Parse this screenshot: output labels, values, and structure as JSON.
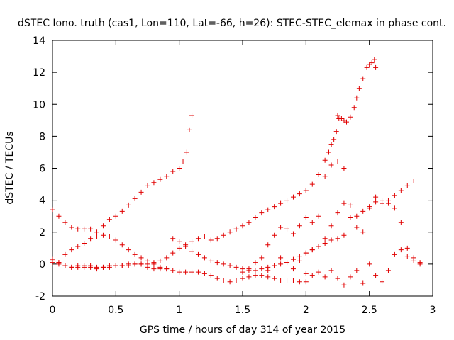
{
  "chart_data": {
    "type": "scatter",
    "title": "dSTEC Iono. truth (cas1, Lon=110, Lat=-66, h=26): STEC-STEC_elemax in phase cont.",
    "xlabel": "GPS time / hours of day 314 of year 2015",
    "ylabel": "dSTEC  / TECUs",
    "xlim": [
      0,
      3
    ],
    "ylim": [
      -2,
      14
    ],
    "xticks": [
      0,
      0.5,
      1,
      1.5,
      2,
      2.5,
      3
    ],
    "xtick_labels": [
      "0",
      "0.5",
      "1",
      "1.5",
      "2",
      "2.5",
      "3"
    ],
    "yticks": [
      -2,
      0,
      2,
      4,
      6,
      8,
      10,
      12,
      14
    ],
    "ytick_labels": [
      "-2",
      "0",
      "2",
      "4",
      "6",
      "8",
      "10",
      "12",
      "14"
    ],
    "grid": false,
    "legend": false,
    "marker": "+",
    "color": "#e00000",
    "series": [
      {
        "x": [
          0.0,
          0.05,
          0.1,
          0.15,
          0.2,
          0.25,
          0.3,
          0.35,
          0.4,
          0.45,
          0.5,
          0.55,
          0.6,
          0.65,
          0.7,
          0.75,
          0.8,
          0.85,
          0.9
        ],
        "y": [
          3.4,
          3.0,
          2.6,
          2.3,
          2.2,
          2.2,
          2.2,
          1.7,
          1.8,
          1.7,
          1.5,
          1.2,
          0.9,
          0.6,
          0.4,
          0.2,
          0.0,
          -0.2,
          -0.3
        ]
      },
      {
        "x": [
          0.0,
          0.05,
          0.1,
          0.15,
          0.2,
          0.25,
          0.3,
          0.35,
          0.4,
          0.45,
          0.5,
          0.55,
          0.6,
          0.65,
          0.7,
          0.75,
          0.8,
          0.85,
          0.9,
          0.95,
          1.0,
          1.03,
          1.06,
          1.08,
          1.1
        ],
        "y": [
          0.2,
          0.1,
          0.6,
          0.9,
          1.1,
          1.3,
          1.6,
          2.0,
          2.4,
          2.8,
          3.0,
          3.3,
          3.7,
          4.1,
          4.5,
          4.9,
          5.1,
          5.3,
          5.5,
          5.8,
          6.0,
          6.4,
          7.0,
          8.4,
          9.3
        ]
      },
      {
        "x": [
          0.0,
          0.05,
          0.1,
          0.15,
          0.2,
          0.25,
          0.3,
          0.35,
          0.4,
          0.45,
          0.5,
          0.55,
          0.6,
          0.65,
          0.7,
          0.75,
          0.8,
          0.85,
          0.9,
          0.95,
          1.0,
          1.05,
          1.1,
          1.15,
          1.2,
          1.25,
          1.3,
          1.35,
          1.4,
          1.45,
          1.5,
          1.55,
          1.6,
          1.65,
          1.7,
          1.75,
          1.8,
          1.85,
          1.9,
          1.95,
          2.0
        ],
        "y": [
          0.3,
          0.1,
          -0.1,
          -0.2,
          -0.2,
          -0.2,
          -0.1,
          -0.2,
          -0.2,
          -0.2,
          -0.1,
          -0.1,
          0.0,
          0.0,
          0.0,
          0.0,
          0.1,
          0.2,
          0.4,
          0.7,
          1.0,
          1.2,
          1.4,
          1.6,
          1.7,
          1.5,
          1.6,
          1.8,
          2.0,
          2.2,
          2.4,
          2.6,
          2.9,
          3.2,
          3.4,
          3.6,
          3.8,
          4.0,
          4.2,
          4.4,
          4.6
        ]
      },
      {
        "x": [
          2.0,
          2.05,
          2.1,
          2.15,
          2.18,
          2.2,
          2.22,
          2.24,
          2.25,
          2.26,
          2.28,
          2.3,
          2.32,
          2.35,
          2.38,
          2.4,
          2.42,
          2.45,
          2.48,
          2.5,
          2.52,
          2.54,
          2.55
        ],
        "y": [
          4.6,
          5.0,
          5.6,
          6.5,
          7.0,
          7.5,
          7.8,
          8.3,
          9.3,
          9.1,
          9.1,
          9.0,
          8.9,
          9.2,
          9.8,
          10.4,
          11.0,
          11.6,
          12.3,
          12.5,
          12.6,
          12.8,
          12.3
        ]
      },
      {
        "x": [
          0.0,
          0.05,
          0.1,
          0.15,
          0.2,
          0.25,
          0.3,
          0.35,
          0.4,
          0.45,
          0.5,
          0.55,
          0.6,
          0.65,
          0.7,
          0.75,
          0.8,
          0.85,
          0.9,
          0.95,
          1.0,
          1.05,
          1.1,
          1.15,
          1.2,
          1.25,
          1.3,
          1.35,
          1.4,
          1.45,
          1.5,
          1.55,
          1.6,
          1.65,
          1.7,
          1.75,
          1.8,
          1.85,
          1.9,
          1.95,
          2.0
        ],
        "y": [
          0.1,
          0.0,
          -0.1,
          -0.2,
          -0.1,
          -0.1,
          -0.2,
          -0.3,
          -0.2,
          -0.1,
          -0.1,
          -0.1,
          -0.1,
          0.0,
          0.0,
          -0.2,
          -0.3,
          -0.3,
          -0.3,
          -0.4,
          -0.5,
          -0.5,
          -0.5,
          -0.5,
          -0.6,
          -0.7,
          -0.9,
          -1.0,
          -1.1,
          -1.0,
          -0.9,
          -0.8,
          -0.7,
          -0.7,
          -0.8,
          -0.9,
          -1.0,
          -1.0,
          -1.0,
          -1.1,
          -1.1
        ]
      },
      {
        "x": [
          0.95,
          1.0,
          1.05,
          1.1,
          1.15,
          1.2,
          1.25,
          1.3,
          1.35,
          1.4,
          1.45,
          1.5,
          1.55,
          1.6,
          1.65,
          1.7,
          1.75,
          1.8,
          1.85,
          1.9,
          1.95,
          2.0,
          2.05,
          2.1,
          2.15,
          2.2,
          2.25,
          2.3
        ],
        "y": [
          1.6,
          1.4,
          1.1,
          0.8,
          0.6,
          0.4,
          0.2,
          0.1,
          0.0,
          -0.1,
          -0.2,
          -0.3,
          -0.4,
          -0.4,
          -0.3,
          -0.2,
          -0.1,
          0.0,
          0.1,
          0.3,
          0.5,
          0.7,
          0.9,
          1.1,
          1.3,
          1.5,
          1.6,
          1.8
        ]
      },
      {
        "x": [
          1.5,
          1.55,
          1.6,
          1.65,
          1.7,
          1.75,
          1.8,
          1.85,
          1.9,
          1.95,
          2.0,
          2.05,
          2.1,
          2.15,
          2.2,
          2.25,
          2.3,
          2.35,
          2.4,
          2.45,
          2.5,
          2.55,
          2.6,
          2.65,
          2.7,
          2.75,
          2.8,
          2.85
        ],
        "y": [
          -0.5,
          -0.3,
          0.1,
          0.4,
          1.2,
          1.8,
          2.3,
          2.2,
          1.9,
          2.4,
          2.9,
          2.6,
          3.0,
          5.5,
          6.2,
          6.4,
          6.0,
          3.7,
          3.0,
          3.3,
          3.6,
          3.9,
          3.8,
          4.0,
          4.3,
          4.6,
          4.9,
          5.2
        ]
      },
      {
        "x": [
          1.7,
          1.75,
          1.8,
          1.85,
          1.9,
          1.95,
          2.0,
          2.05,
          2.1,
          2.15,
          2.2,
          2.25,
          2.3,
          2.35,
          2.4,
          2.45,
          2.5,
          2.55,
          2.6,
          2.65,
          2.7,
          2.75,
          2.8,
          2.85,
          2.9
        ],
        "y": [
          -0.4,
          -0.1,
          0.4,
          0.1,
          -0.3,
          0.2,
          0.7,
          0.9,
          1.1,
          1.6,
          2.4,
          3.2,
          3.8,
          2.9,
          2.3,
          2.0,
          3.5,
          4.2,
          4.0,
          3.8,
          3.5,
          2.6,
          1.0,
          0.4,
          0.1
        ]
      },
      {
        "x": [
          2.0,
          2.05,
          2.1,
          2.15,
          2.2,
          2.25,
          2.3,
          2.35,
          2.4,
          2.45,
          2.5,
          2.55,
          2.6,
          2.65,
          2.7,
          2.75,
          2.8,
          2.85,
          2.9
        ],
        "y": [
          -0.6,
          -0.7,
          -0.5,
          -0.8,
          -0.4,
          -0.9,
          -1.3,
          -0.8,
          -0.4,
          -1.2,
          0.0,
          -0.7,
          -1.1,
          -0.4,
          0.6,
          0.9,
          0.5,
          0.2,
          0.0
        ]
      }
    ]
  }
}
